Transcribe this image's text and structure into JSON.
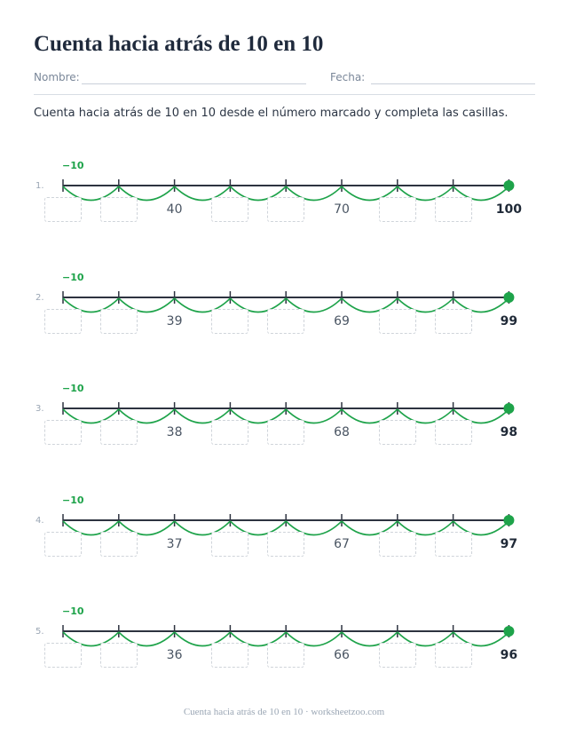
{
  "title": "Cuenta hacia atrás de 10 en 10",
  "header": {
    "name_label": "Nombre:",
    "date_label": "Fecha:"
  },
  "instructions": "Cuenta hacia atrás de 10 en 10 desde el número marcado y completa las casillas.",
  "problems": [
    {
      "number": "1.",
      "jump": "−10",
      "ticks": [
        "",
        "",
        "40",
        "",
        "",
        "70",
        "",
        "",
        "100"
      ]
    },
    {
      "number": "2.",
      "jump": "−10",
      "ticks": [
        "",
        "",
        "39",
        "",
        "",
        "69",
        "",
        "",
        "99"
      ]
    },
    {
      "number": "3.",
      "jump": "−10",
      "ticks": [
        "",
        "",
        "38",
        "",
        "",
        "68",
        "",
        "",
        "98"
      ]
    },
    {
      "number": "4.",
      "jump": "−10",
      "ticks": [
        "",
        "",
        "37",
        "",
        "",
        "67",
        "",
        "",
        "97"
      ]
    },
    {
      "number": "5.",
      "jump": "−10",
      "ticks": [
        "",
        "",
        "36",
        "",
        "",
        "66",
        "",
        "",
        "96"
      ]
    }
  ],
  "footer": "Cuenta hacia atrás de 10 en 10 · worksheetzoo.com",
  "colors": {
    "accent": "#1ea34a",
    "line": "#2d3340",
    "box_border": "#cfd4da"
  }
}
